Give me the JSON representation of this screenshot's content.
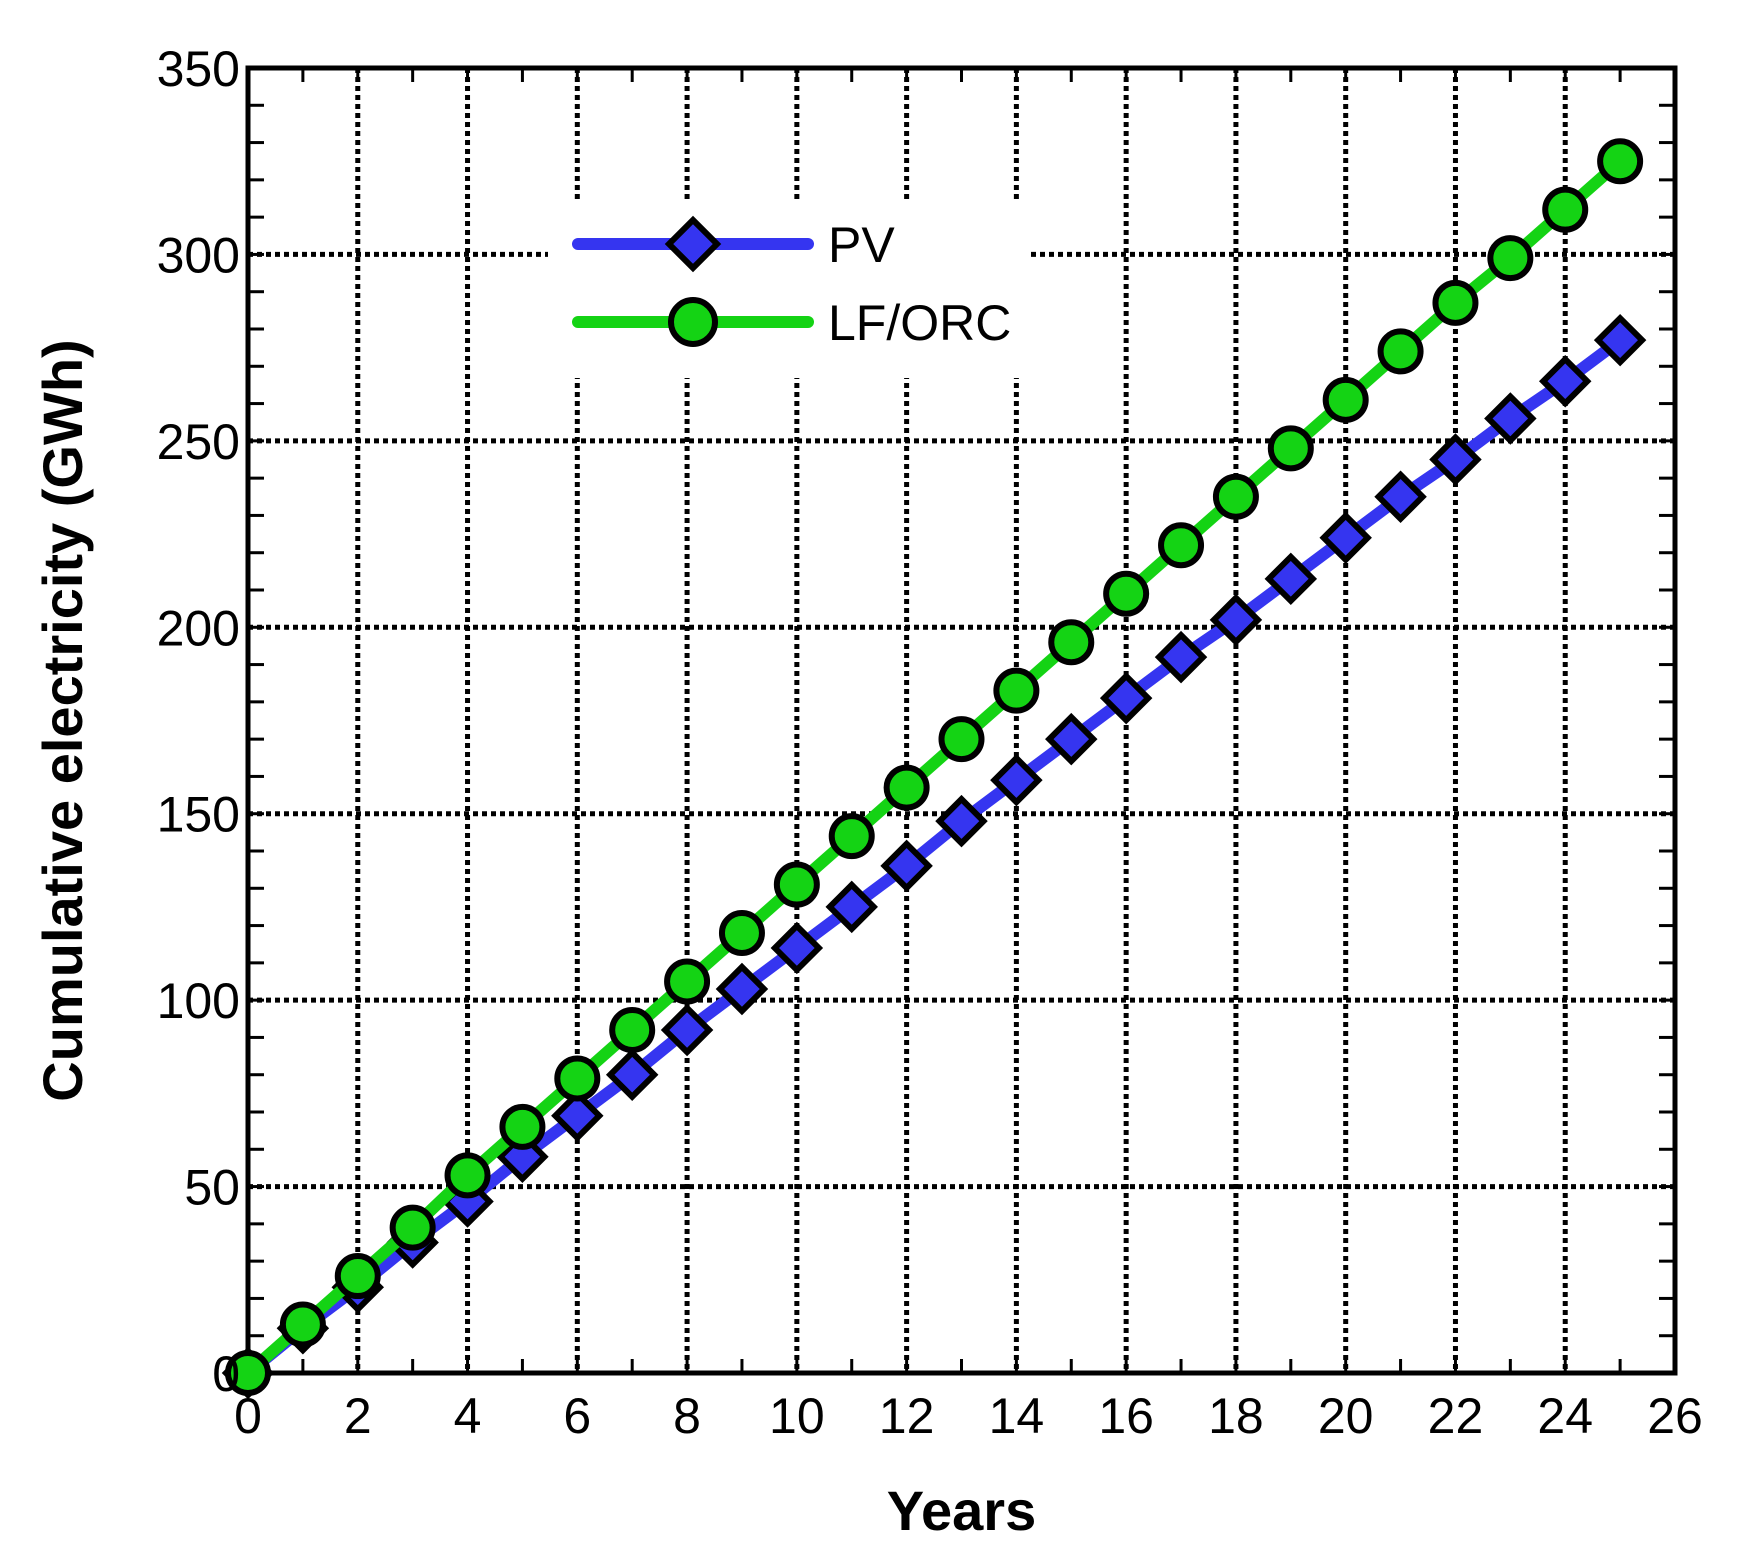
{
  "chart_data": {
    "type": "line",
    "xlabel": "Years",
    "ylabel": "Cumulative electricity (GWh)",
    "xlim": [
      0,
      26
    ],
    "ylim": [
      0,
      350
    ],
    "x_ticks": [
      0,
      2,
      4,
      6,
      8,
      10,
      12,
      14,
      16,
      18,
      20,
      22,
      24,
      26
    ],
    "y_ticks": [
      0,
      50,
      100,
      150,
      200,
      250,
      300,
      350
    ],
    "grid": true,
    "legend_position": "top-center",
    "x": [
      0,
      1,
      2,
      3,
      4,
      5,
      6,
      7,
      8,
      9,
      10,
      11,
      12,
      13,
      14,
      15,
      16,
      17,
      18,
      19,
      20,
      21,
      22,
      23,
      24,
      25
    ],
    "series": [
      {
        "name": "PV",
        "color": "#3535f0",
        "marker": "diamond",
        "values": [
          0,
          12,
          23,
          35,
          46,
          58,
          69,
          80,
          92,
          103,
          114,
          125,
          136,
          148,
          159,
          170,
          181,
          192,
          202,
          213,
          224,
          235,
          245,
          256,
          266,
          277
        ]
      },
      {
        "name": "LF/ORC",
        "color": "#14d314",
        "marker": "circle",
        "values": [
          0,
          13,
          26,
          39,
          53,
          66,
          79,
          92,
          105,
          118,
          131,
          144,
          157,
          170,
          183,
          196,
          209,
          222,
          235,
          248,
          261,
          274,
          287,
          299,
          312,
          325
        ]
      }
    ]
  }
}
